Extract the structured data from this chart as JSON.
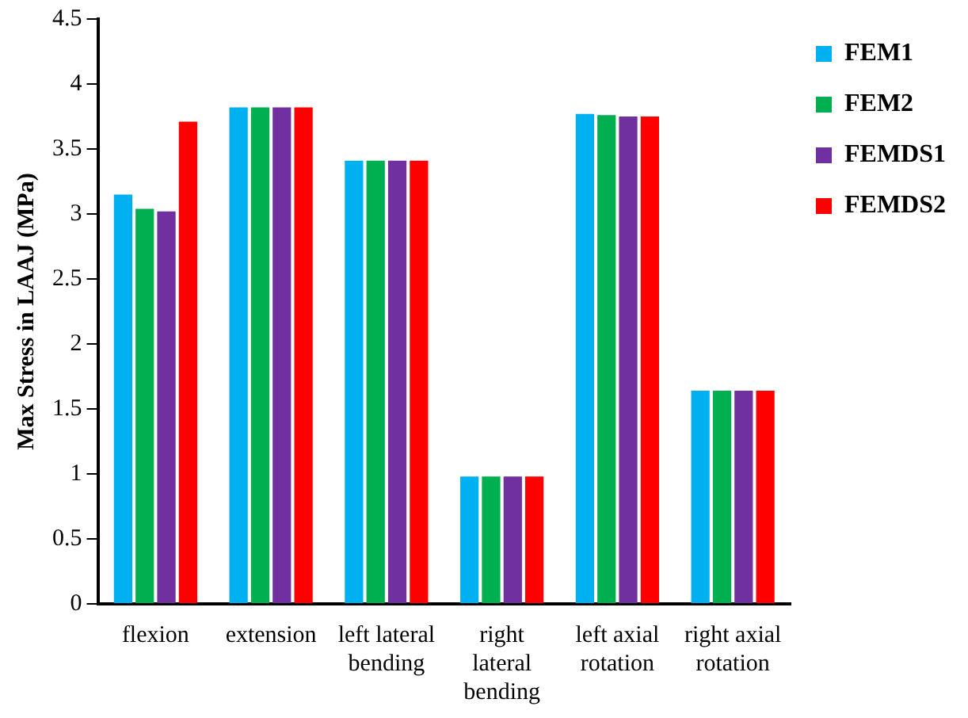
{
  "chart_data": {
    "type": "bar",
    "ylabel": "Max Stress in LAAJ (MPa)",
    "categories": [
      "flexion",
      "extension",
      "left lateral bending",
      "right lateral bending",
      "left axial rotation",
      "right axial rotation"
    ],
    "series": [
      {
        "name": "FEM1",
        "color": "#00b0f0",
        "values": [
          3.15,
          3.82,
          3.41,
          0.98,
          3.77,
          1.64
        ]
      },
      {
        "name": "FEM2",
        "color": "#00b050",
        "values": [
          3.04,
          3.82,
          3.41,
          0.98,
          3.76,
          1.64
        ]
      },
      {
        "name": "FEMDS1",
        "color": "#7030a0",
        "values": [
          3.02,
          3.82,
          3.41,
          0.98,
          3.75,
          1.64
        ]
      },
      {
        "name": "FEMDS2",
        "color": "#ff0000",
        "values": [
          3.71,
          3.82,
          3.41,
          0.98,
          3.75,
          1.64
        ]
      }
    ],
    "ylim": [
      0,
      4.5
    ],
    "yticks": [
      0,
      0.5,
      1,
      1.5,
      2,
      2.5,
      3,
      3.5,
      4,
      4.5
    ],
    "grid": false,
    "legend": "top right"
  }
}
